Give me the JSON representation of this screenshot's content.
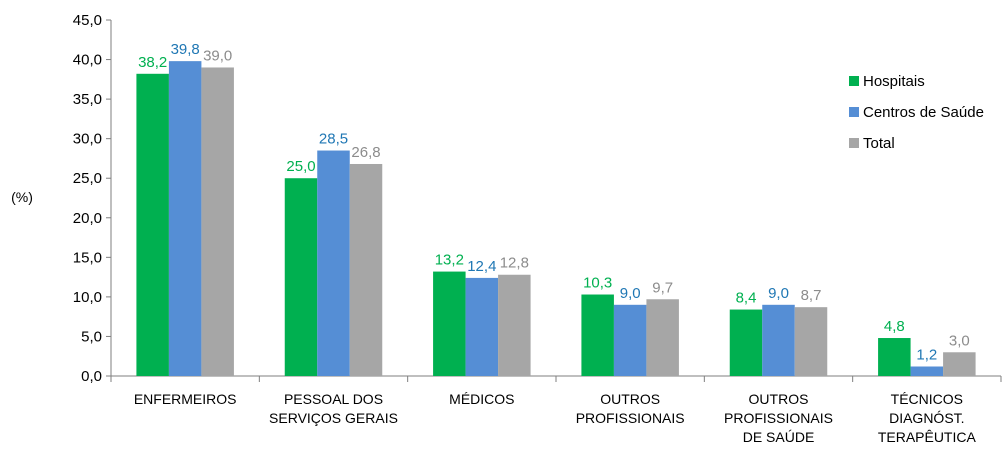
{
  "chart_data": {
    "type": "bar",
    "ylabel": "(%)",
    "ylim": [
      0,
      45
    ],
    "yticks": [
      "0,0",
      "5,0",
      "10,0",
      "15,0",
      "20,0",
      "25,0",
      "30,0",
      "35,0",
      "40,0",
      "45,0"
    ],
    "categories": [
      [
        "ENFERMEIROS"
      ],
      [
        "PESSOAL DOS",
        "SERVIÇOS GERAIS"
      ],
      [
        "MÉDICOS"
      ],
      [
        "OUTROS",
        "PROFISSIONAIS"
      ],
      [
        "OUTROS",
        "PROFISSIONAIS",
        "DE SAÚDE"
      ],
      [
        "TÉCNICOS",
        "DIAGNÓST.",
        "TERAPÊUTICA"
      ]
    ],
    "series": [
      {
        "name": "Hospitais",
        "color": "#00b050",
        "label_color": "#00b050",
        "values": [
          38.2,
          25.0,
          13.2,
          10.3,
          8.4,
          4.8
        ],
        "labels": [
          "38,2",
          "25,0",
          "13,2",
          "10,3",
          "8,4",
          "4,8"
        ]
      },
      {
        "name": "Centros de Saúde",
        "color": "#558ed5",
        "label_color": "#1f77b4",
        "values": [
          39.8,
          28.5,
          12.4,
          9.0,
          9.0,
          1.2
        ],
        "labels": [
          "39,8",
          "28,5",
          "12,4",
          "9,0",
          "9,0",
          "1,2"
        ]
      },
      {
        "name": "Total",
        "color": "#a6a6a6",
        "label_color": "#8c8c8c",
        "values": [
          39.0,
          26.8,
          12.8,
          9.7,
          8.7,
          3.0
        ],
        "labels": [
          "39,0",
          "26,8",
          "12,8",
          "9,7",
          "8,7",
          "3,0"
        ]
      }
    ],
    "legend_position": "right",
    "grid": false
  }
}
